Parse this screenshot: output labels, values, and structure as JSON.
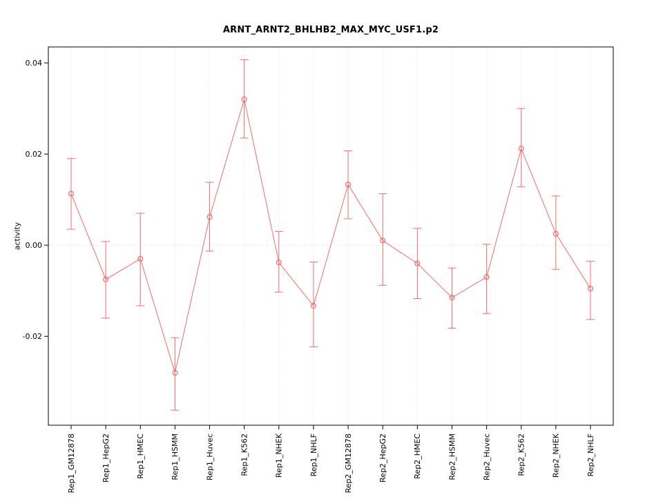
{
  "title": "ARNT_ARNT2_BHLHB2_MAX_MYC_USF1.p2",
  "chart_data": {
    "type": "line",
    "title": "ARNT_ARNT2_BHLHB2_MAX_MYC_USF1.p2",
    "xlabel": "",
    "ylabel": "activity",
    "ylim": [
      -0.0395,
      0.0435
    ],
    "yticks": [
      -0.02,
      0.0,
      0.02,
      0.04
    ],
    "ytick_labels": [
      "-0.02",
      "0.00",
      "0.02",
      "0.04"
    ],
    "grid": "dotted vertical line at each category, dotted horizontal line at y=0",
    "legend_position": "none",
    "point_style": "open-circle-with-error-bars",
    "series_color": "#f56b6b",
    "grid_color": "#d8d8d8",
    "box_color": "#000000",
    "categories": [
      "Rep1_GM12878",
      "Rep1_HepG2",
      "Rep1_HMEC",
      "Rep1_HSMM",
      "Rep1_Huvec",
      "Rep1_K562",
      "Rep1_NHEK",
      "Rep1_NHLF",
      "Rep2_GM12878",
      "Rep2_HepG2",
      "Rep2_HMEC",
      "Rep2_HSMM",
      "Rep2_Huvec",
      "Rep2_K562",
      "Rep2_NHEK",
      "Rep2_NHLF"
    ],
    "values": [
      0.0113,
      -0.0075,
      -0.003,
      -0.028,
      0.0062,
      0.032,
      -0.0038,
      -0.0133,
      0.0133,
      0.001,
      -0.004,
      -0.0115,
      -0.007,
      0.0212,
      0.0025,
      -0.0095
    ],
    "error_low": [
      0.0035,
      -0.016,
      -0.0133,
      -0.0362,
      -0.0013,
      0.0235,
      -0.0103,
      -0.0223,
      0.0058,
      -0.0088,
      -0.0117,
      -0.0182,
      -0.015,
      0.0128,
      -0.0053,
      -0.0163
    ],
    "error_high": [
      0.019,
      0.0008,
      0.007,
      -0.0203,
      0.0138,
      0.0407,
      0.003,
      -0.0037,
      0.0207,
      0.0113,
      0.0037,
      -0.005,
      0.0002,
      0.03,
      0.0108,
      -0.0035
    ]
  }
}
